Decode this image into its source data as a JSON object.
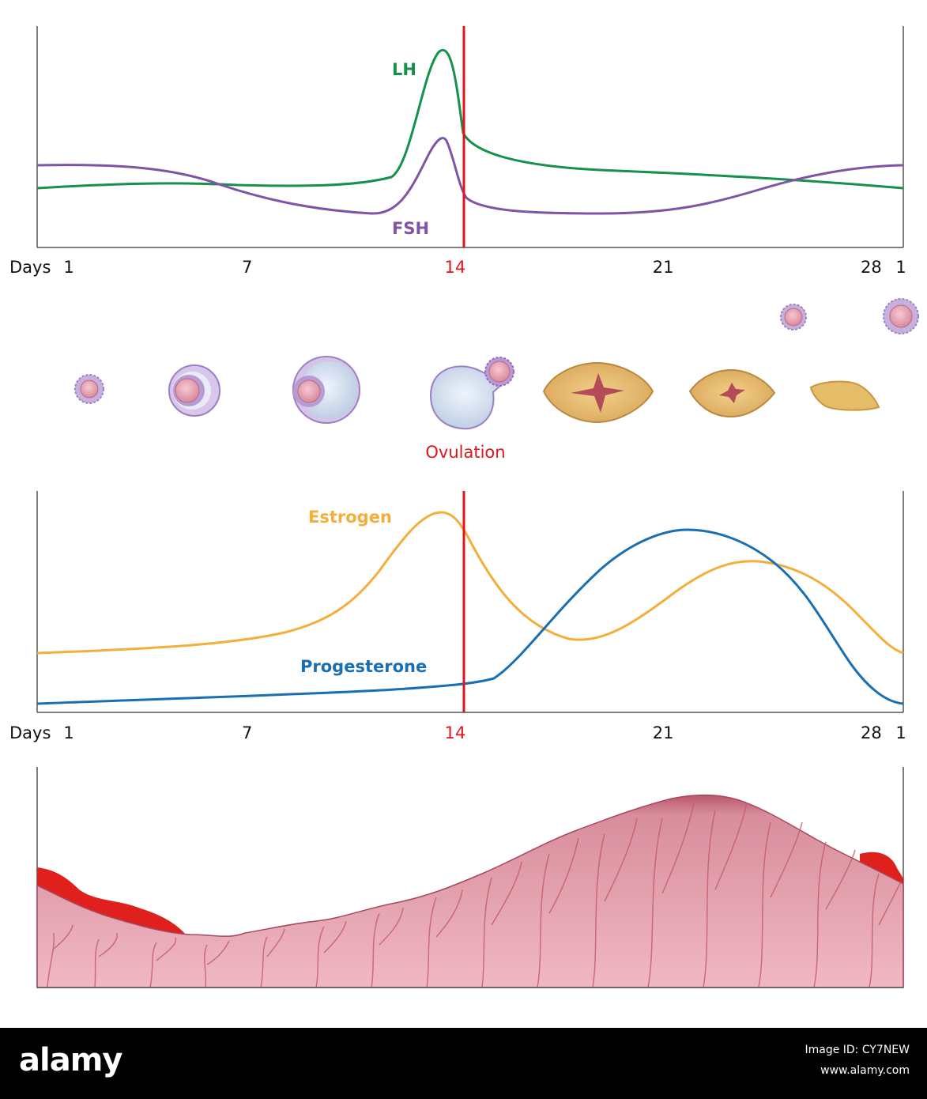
{
  "colors": {
    "lh": "#14914a",
    "fsh": "#7f54a7",
    "estrogen": "#f4ae3b",
    "progesterone": "#1a6fb3",
    "ovulation": "#e3141b",
    "axis": "#555555",
    "tissue": "#d78a98",
    "tissue_dark": "#b85d6e",
    "blood": "#e0201d"
  },
  "top_chart": {
    "series": [
      {
        "name": "LH",
        "key": "lh"
      },
      {
        "name": "FSH",
        "key": "fsh"
      }
    ],
    "axis": {
      "prefix": "Days",
      "ticks": [
        {
          "label": "1",
          "day": 1
        },
        {
          "label": "7",
          "day": 7
        },
        {
          "label": "14",
          "day": 14,
          "highlight": true
        },
        {
          "label": "21",
          "day": 21
        },
        {
          "label": "28",
          "day": 28
        },
        {
          "label": "1",
          "day": 29
        }
      ]
    }
  },
  "ovulation_label": "Ovulation",
  "middle_chart": {
    "series": [
      {
        "name": "Estrogen",
        "key": "estrogen"
      },
      {
        "name": "Progesterone",
        "key": "progesterone"
      }
    ],
    "axis": {
      "prefix": "Days",
      "ticks": [
        {
          "label": "1",
          "day": 1
        },
        {
          "label": "7",
          "day": 7
        },
        {
          "label": "14",
          "day": 14,
          "highlight": true
        },
        {
          "label": "21",
          "day": 21
        },
        {
          "label": "28",
          "day": 28
        },
        {
          "label": "1",
          "day": 29
        }
      ]
    }
  },
  "follicle_stages": [
    {
      "name": "primordial-follicle-icon"
    },
    {
      "name": "primary-follicle-icon"
    },
    {
      "name": "secondary-follicle-icon"
    },
    {
      "name": "ovulating-follicle-icon"
    },
    {
      "name": "corpus-luteum-icon"
    },
    {
      "name": "regressing-corpus-luteum-icon"
    },
    {
      "name": "corpus-albicans-icon"
    }
  ],
  "footer": {
    "brand": "alamy",
    "image_id": "Image ID: CY7NEW",
    "site": "www.alamy.com",
    "background": "#000000",
    "text_color": "#ffffff"
  }
}
